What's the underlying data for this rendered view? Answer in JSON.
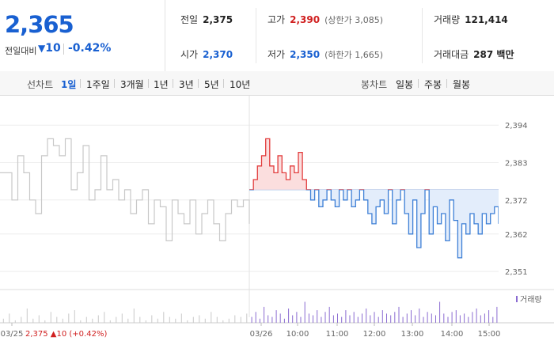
{
  "quote": {
    "price": "2,365",
    "change_label": "전일대비",
    "change_arrow": "▼",
    "change_value": "10",
    "change_pct": "-0.42%"
  },
  "stats": {
    "prev_close": {
      "label": "전일",
      "value": "2,375"
    },
    "high": {
      "label": "고가",
      "value": "2,390",
      "sub": "(상한가 3,085)"
    },
    "volume": {
      "label": "거래량",
      "value": "121,414"
    },
    "open": {
      "label": "시가",
      "value": "2,370"
    },
    "low": {
      "label": "저가",
      "value": "2,350",
      "sub": "(하한가 1,665)"
    },
    "trade_value": {
      "label": "거래대금",
      "value": "287 백만"
    }
  },
  "tabs": {
    "line_label": "선차트",
    "line_tabs": [
      "1일",
      "1주일",
      "3개월",
      "1년",
      "3년",
      "5년",
      "10년"
    ],
    "line_active": "1일",
    "candle_label": "봉차트",
    "candle_tabs": [
      "일봉",
      "주봉",
      "월봉"
    ]
  },
  "chart_data": {
    "type": "line",
    "y_ticks": [
      "2,394",
      "2,383",
      "2,372",
      "2,362",
      "2,351"
    ],
    "ylim": [
      2348,
      2398
    ],
    "reference_price": 2375,
    "x_ticks": [
      "03/25",
      "03/26",
      "10:00",
      "11:00",
      "12:00",
      "13:00",
      "14:00",
      "15:00"
    ],
    "prev_day_footer": {
      "date": "03/25",
      "close": "2,375",
      "arrow": "▲",
      "change": "10",
      "pct": "(+0.42%)"
    },
    "volume_legend": "거래량",
    "colors": {
      "up": "#e23b3b",
      "down": "#3d7fd6",
      "prev": "#c8c8c8",
      "down_fill": "#e3edfb",
      "up_fill": "#fbdede",
      "volume": "#8a6bd1"
    },
    "prev_day_series": [
      2380,
      2380,
      2372,
      2385,
      2380,
      2372,
      2368,
      2385,
      2390,
      2388,
      2385,
      2390,
      2375,
      2380,
      2388,
      2372,
      2375,
      2385,
      2375,
      2378,
      2372,
      2375,
      2368,
      2372,
      2375,
      2365,
      2372,
      2370,
      2360,
      2372,
      2368,
      2365,
      2372,
      2362,
      2368,
      2372,
      2365,
      2360,
      2368,
      2372,
      2370,
      2372,
      2365
    ],
    "today_series": [
      2375,
      2378,
      2382,
      2385,
      2390,
      2382,
      2380,
      2385,
      2380,
      2378,
      2382,
      2380,
      2386,
      2378,
      2375,
      2372,
      2375,
      2370,
      2372,
      2375,
      2372,
      2370,
      2375,
      2372,
      2375,
      2370,
      2372,
      2375,
      2372,
      2368,
      2365,
      2370,
      2372,
      2368,
      2375,
      2365,
      2372,
      2375,
      2368,
      2362,
      2372,
      2358,
      2368,
      2375,
      2362,
      2370,
      2365,
      2368,
      2360,
      2372,
      2366,
      2355,
      2365,
      2362,
      2368,
      2365,
      2362,
      2368,
      2365,
      2368,
      2370,
      2365
    ],
    "volume_prev": [
      2,
      5,
      1,
      3,
      8,
      2,
      4,
      1,
      6,
      3,
      2,
      5,
      7,
      1,
      3,
      2,
      4,
      6,
      1,
      3,
      5,
      2,
      8,
      3,
      1,
      4,
      2,
      6,
      3,
      2,
      5,
      1,
      3,
      4,
      2,
      6,
      3,
      1,
      2,
      4,
      3,
      5
    ],
    "volume_today": [
      3,
      6,
      2,
      9,
      4,
      3,
      7,
      5,
      2,
      8,
      4,
      6,
      3,
      12,
      5,
      4,
      7,
      3,
      6,
      9,
      4,
      5,
      3,
      7,
      4,
      6,
      3,
      5,
      8,
      4,
      6,
      3,
      7,
      5,
      4,
      6,
      9,
      3,
      5,
      7,
      4,
      8,
      3,
      6,
      5,
      4,
      12,
      5,
      3,
      6,
      7,
      4,
      5,
      3,
      6,
      8,
      4,
      5,
      7,
      3,
      9
    ]
  }
}
